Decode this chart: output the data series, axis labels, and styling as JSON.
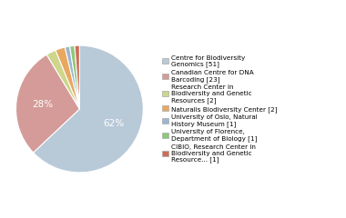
{
  "labels": [
    "Centre for Biodiversity\nGenomics [51]",
    "Canadian Centre for DNA\nBarcoding [23]",
    "Research Center in\nBiodiversity and Genetic\nResources [2]",
    "Naturalis Biodiversity Center [2]",
    "University of Oslo, Natural\nHistory Museum [1]",
    "University of Florence,\nDepartment of Biology [1]",
    "CIBIO, Research Center in\nBiodiversity and Genetic\nResource... [1]"
  ],
  "values": [
    51,
    23,
    2,
    2,
    1,
    1,
    1
  ],
  "colors": [
    "#b8c9d8",
    "#d49b98",
    "#cdd68a",
    "#e8a860",
    "#9db5cf",
    "#8dc87a",
    "#cd6e58"
  ],
  "pct_labels": [
    "62%",
    "28%",
    "2%",
    "2%",
    "1%",
    "1%",
    "1%"
  ],
  "show_pct": [
    true,
    true,
    false,
    false,
    false,
    false,
    false
  ],
  "background_color": "#ffffff",
  "text_color": "#ffffff",
  "pct_fontsize": 7.5
}
